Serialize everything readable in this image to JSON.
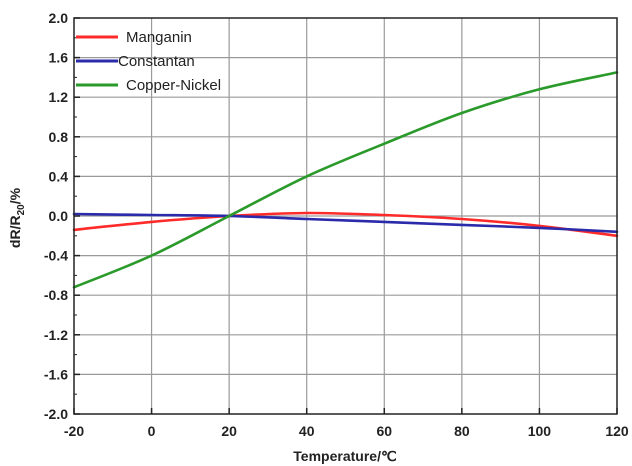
{
  "chart_data": {
    "type": "line",
    "xlabel": "Temperature/℃",
    "ylabel_main": "dR/R",
    "ylabel_sub": "20",
    "ylabel_tail": "/%",
    "xlim": [
      -20,
      120
    ],
    "ylim": [
      -2.0,
      2.0
    ],
    "x_ticks": [
      -20,
      0,
      20,
      40,
      60,
      80,
      100,
      120
    ],
    "x_tick_labels": [
      "-20",
      "0",
      "20",
      "40",
      "60",
      "80",
      "100",
      "120"
    ],
    "y_ticks": [
      -2.0,
      -1.6,
      -1.2,
      -0.8,
      -0.4,
      0.0,
      0.4,
      0.8,
      1.2,
      1.6,
      2.0
    ],
    "y_tick_labels": [
      "-2.0",
      "-1.6",
      "-1.2",
      "-0.8",
      "-0.4",
      "0.0",
      "0.4",
      "0.8",
      "1.2",
      "1.6",
      "2.0"
    ],
    "grid": true,
    "legend_position": "top-left",
    "series": [
      {
        "name": "Manganin",
        "color": "#ff2a2a",
        "x": [
          -20,
          0,
          20,
          40,
          60,
          80,
          100,
          120
        ],
        "y": [
          -0.14,
          -0.06,
          0.0,
          0.03,
          0.01,
          -0.03,
          -0.1,
          -0.2
        ]
      },
      {
        "name": "Constantan",
        "color": "#2a2aaa",
        "x": [
          -20,
          0,
          20,
          40,
          60,
          80,
          100,
          120
        ],
        "y": [
          0.02,
          0.01,
          0.0,
          -0.03,
          -0.06,
          -0.09,
          -0.12,
          -0.16
        ]
      },
      {
        "name": "Copper-Nickel",
        "color": "#2a9a2a",
        "x": [
          -20,
          0,
          20,
          40,
          60,
          80,
          100,
          120
        ],
        "y": [
          -0.72,
          -0.4,
          0.0,
          0.4,
          0.73,
          1.04,
          1.28,
          1.45
        ]
      }
    ]
  }
}
